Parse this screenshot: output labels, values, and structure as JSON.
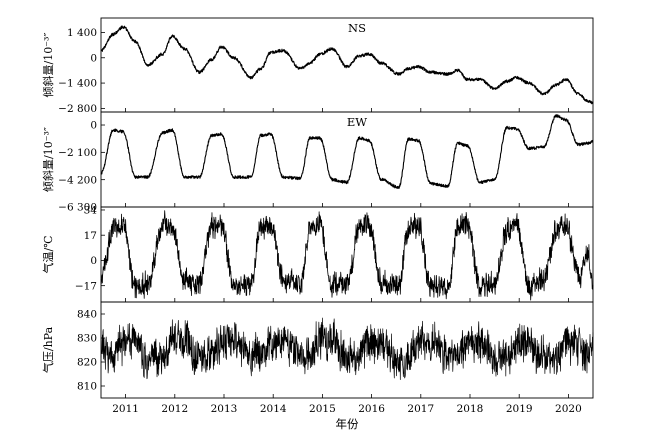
{
  "chart_data": [
    {
      "type": "line",
      "name": "NS",
      "ylabel": "倾斜量/10⁻³″",
      "yticks": [
        1400,
        0,
        -1400,
        -2800
      ],
      "ytick_labels": [
        "1 400",
        "0",
        "−1 400",
        "−2 800"
      ],
      "ylim": [
        -3000,
        2200
      ],
      "x": [
        2010.5,
        2010.75,
        2010.95,
        2011.2,
        2011.45,
        2011.75,
        2011.95,
        2012.2,
        2012.5,
        2012.75,
        2012.95,
        2013.2,
        2013.55,
        2013.75,
        2013.95,
        2014.2,
        2014.55,
        2014.75,
        2014.95,
        2015.2,
        2015.5,
        2015.75,
        2015.95,
        2016.2,
        2016.55,
        2016.75,
        2016.95,
        2017.2,
        2017.55,
        2017.75,
        2017.95,
        2018.2,
        2018.5,
        2018.75,
        2018.95,
        2019.2,
        2019.5,
        2019.75,
        2019.95,
        2020.2,
        2020.4,
        2020.5
      ],
      "values": [
        400,
        1300,
        1700,
        900,
        -400,
        200,
        1200,
        500,
        -800,
        -100,
        600,
        0,
        -1100,
        -600,
        300,
        400,
        -600,
        -300,
        200,
        500,
        -500,
        100,
        200,
        -300,
        -900,
        -600,
        -500,
        -800,
        -900,
        -700,
        -1200,
        -1200,
        -1700,
        -1300,
        -1100,
        -1400,
        -2000,
        -1500,
        -1200,
        -2000,
        -2400,
        -2500
      ]
    },
    {
      "type": "line",
      "name": "EW",
      "ylabel": "倾斜量/10⁻³″",
      "yticks": [
        0,
        -2100,
        -4200,
        -6300
      ],
      "ytick_labels": [
        "0",
        "−2 100",
        "−4 200",
        "−6 300"
      ],
      "ylim": [
        -6300,
        1000
      ],
      "x": [
        2010.5,
        2010.75,
        2010.95,
        2011.2,
        2011.45,
        2011.75,
        2011.95,
        2012.2,
        2012.5,
        2012.75,
        2012.95,
        2013.2,
        2013.55,
        2013.75,
        2013.95,
        2014.2,
        2014.55,
        2014.75,
        2014.95,
        2015.2,
        2015.5,
        2015.75,
        2015.95,
        2016.2,
        2016.55,
        2016.75,
        2016.95,
        2017.2,
        2017.55,
        2017.75,
        2017.95,
        2018.2,
        2018.5,
        2018.75,
        2018.95,
        2019.2,
        2019.5,
        2019.75,
        2019.95,
        2020.2,
        2020.4,
        2020.5
      ],
      "values": [
        -3700,
        -400,
        -500,
        -4000,
        -4000,
        -600,
        -400,
        -4000,
        -4000,
        -800,
        -700,
        -4000,
        -4000,
        -800,
        -700,
        -4000,
        -4100,
        -1000,
        -1000,
        -4200,
        -4400,
        -1000,
        -1200,
        -4200,
        -4800,
        -1100,
        -1200,
        -4500,
        -4700,
        -1400,
        -1600,
        -4400,
        -4200,
        -200,
        -300,
        -1800,
        -1700,
        700,
        400,
        -1500,
        -1400,
        -1200
      ]
    },
    {
      "type": "line",
      "name": "",
      "ylabel": "气温/℃",
      "yticks": [
        34,
        17,
        0,
        -17
      ],
      "ytick_labels": [
        "34",
        "17",
        "0",
        "−17"
      ],
      "ylim": [
        -28,
        36
      ],
      "x": [
        2010.5,
        2010.75,
        2010.95,
        2011.2,
        2011.45,
        2011.75,
        2011.95,
        2012.2,
        2012.5,
        2012.75,
        2012.95,
        2013.2,
        2013.55,
        2013.75,
        2013.95,
        2014.2,
        2014.55,
        2014.75,
        2014.95,
        2015.2,
        2015.5,
        2015.75,
        2015.95,
        2016.2,
        2016.55,
        2016.75,
        2016.95,
        2017.2,
        2017.55,
        2017.75,
        2017.95,
        2018.2,
        2018.5,
        2018.75,
        2018.95,
        2019.2,
        2019.5,
        2019.75,
        2019.95,
        2020.2,
        2020.4,
        2020.5
      ],
      "values": [
        -10,
        22,
        26,
        -18,
        -16,
        24,
        24,
        -14,
        -16,
        22,
        24,
        -18,
        -16,
        22,
        24,
        -12,
        -15,
        22,
        24,
        -16,
        -16,
        22,
        24,
        -16,
        -18,
        22,
        24,
        -18,
        -18,
        22,
        24,
        -17,
        -16,
        22,
        24,
        -17,
        -14,
        20,
        24,
        -10,
        2,
        -16
      ]
    },
    {
      "type": "line",
      "name": "",
      "ylabel": "气压/hPa",
      "yticks": [
        840,
        830,
        820,
        810
      ],
      "ytick_labels": [
        "840",
        "830",
        "820",
        "810"
      ],
      "ylim": [
        805,
        845
      ],
      "x": [
        2010.5,
        2010.75,
        2010.95,
        2011.2,
        2011.45,
        2011.75,
        2011.95,
        2012.2,
        2012.5,
        2012.75,
        2012.95,
        2013.2,
        2013.55,
        2013.75,
        2013.95,
        2014.2,
        2014.55,
        2014.75,
        2014.95,
        2015.2,
        2015.5,
        2015.75,
        2015.95,
        2016.2,
        2016.55,
        2016.75,
        2016.95,
        2017.2,
        2017.55,
        2017.75,
        2017.95,
        2018.2,
        2018.5,
        2018.75,
        2018.95,
        2019.2,
        2019.5,
        2019.75,
        2019.95,
        2020.2,
        2020.4,
        2020.5
      ],
      "values": [
        826,
        822,
        829,
        828,
        821,
        823,
        829,
        828,
        822,
        823,
        828,
        829,
        822,
        823,
        828,
        829,
        822,
        823,
        829,
        829,
        822,
        822,
        828,
        828,
        821,
        822,
        829,
        829,
        822,
        823,
        828,
        828,
        821,
        823,
        829,
        828,
        822,
        822,
        828,
        828,
        823,
        829
      ]
    }
  ],
  "x_axis": {
    "label": "年份",
    "xlim": [
      2010.5,
      2020.5
    ],
    "ticks": [
      2011,
      2012,
      2013,
      2014,
      2015,
      2016,
      2017,
      2018,
      2019,
      2020
    ],
    "tick_labels": [
      "2011",
      "2012",
      "2013",
      "2014",
      "2015",
      "2016",
      "2017",
      "2018",
      "2019",
      "2020"
    ]
  }
}
